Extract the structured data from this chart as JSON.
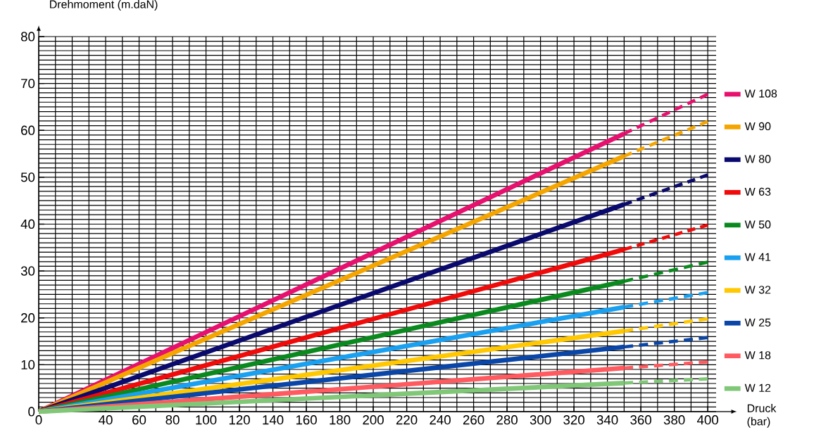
{
  "chart_data": {
    "type": "line",
    "xlabel": "Druck (bar)",
    "ylabel": "Drehmoment (m.daN)",
    "xlim": [
      0,
      405
    ],
    "ylim": [
      0,
      80
    ],
    "xticks": [
      0,
      {
        "value": 20,
        "label": null
      },
      40,
      60,
      80,
      100,
      120,
      140,
      160,
      180,
      200,
      220,
      240,
      260,
      280,
      300,
      320,
      340,
      360,
      380,
      400
    ],
    "yticks": [
      0,
      10,
      20,
      30,
      40,
      50,
      60,
      70,
      80
    ],
    "grid": true,
    "legend": "right",
    "series": [
      {
        "name": "W 108",
        "color": "#e8106e",
        "x": [
          0,
          350
        ],
        "values": [
          0,
          59.3
        ],
        "line_style": "solid"
      },
      {
        "color": "#e8106e",
        "x": [
          350,
          400
        ],
        "values": [
          59.3,
          67.7
        ],
        "line_style": "dashed"
      },
      {
        "name": "W 90",
        "color": "#f5a500",
        "x": [
          0,
          350
        ],
        "values": [
          0,
          54.5
        ],
        "line_style": "solid"
      },
      {
        "color": "#f5a500",
        "x": [
          350,
          400
        ],
        "values": [
          54.5,
          61.9
        ],
        "line_style": "dashed"
      },
      {
        "name": "W 80",
        "color": "#0a0a6e",
        "x": [
          0,
          350
        ],
        "values": [
          0,
          44.2
        ],
        "line_style": "solid"
      },
      {
        "color": "#0a0a6e",
        "x": [
          350,
          400
        ],
        "values": [
          44.2,
          50.5
        ],
        "line_style": "dashed"
      },
      {
        "name": "W 63",
        "color": "#f00a0a",
        "x": [
          0,
          350
        ],
        "values": [
          0,
          34.6
        ],
        "line_style": "solid"
      },
      {
        "color": "#f00a0a",
        "x": [
          350,
          400
        ],
        "values": [
          34.6,
          39.8
        ],
        "line_style": "dashed"
      },
      {
        "name": "W 50",
        "color": "#0a8a1e",
        "x": [
          0,
          350
        ],
        "values": [
          0,
          27.8
        ],
        "line_style": "solid"
      },
      {
        "color": "#0a8a1e",
        "x": [
          350,
          400
        ],
        "values": [
          27.8,
          31.9
        ],
        "line_style": "dashed"
      },
      {
        "name": "W 41",
        "color": "#1aa0f0",
        "x": [
          0,
          350
        ],
        "values": [
          0,
          22.3
        ],
        "line_style": "solid"
      },
      {
        "color": "#1aa0f0",
        "x": [
          350,
          400
        ],
        "values": [
          22.3,
          25.4
        ],
        "line_style": "dashed"
      },
      {
        "name": "W 32",
        "color": "#ffc800",
        "x": [
          0,
          350
        ],
        "values": [
          0,
          17.2
        ],
        "line_style": "solid"
      },
      {
        "color": "#ffc800",
        "x": [
          350,
          400
        ],
        "values": [
          17.2,
          19.8
        ],
        "line_style": "dashed"
      },
      {
        "name": "W 25",
        "color": "#0a46a8",
        "x": [
          0,
          350
        ],
        "values": [
          0,
          13.8
        ],
        "line_style": "solid"
      },
      {
        "color": "#0a46a8",
        "x": [
          350,
          400
        ],
        "values": [
          13.8,
          15.8
        ],
        "line_style": "dashed"
      },
      {
        "name": "W 18",
        "color": "#ff5a60",
        "x": [
          0,
          350
        ],
        "values": [
          0,
          9.3
        ],
        "line_style": "solid"
      },
      {
        "color": "#ff5a60",
        "x": [
          350,
          400
        ],
        "values": [
          9.3,
          10.6
        ],
        "line_style": "dashed"
      },
      {
        "name": "W 12",
        "color": "#80c878",
        "x": [
          0,
          350
        ],
        "values": [
          0,
          6.1
        ],
        "line_style": "solid"
      },
      {
        "color": "#80c878",
        "x": [
          350,
          400
        ],
        "values": [
          6.1,
          7.0
        ],
        "line_style": "dashed"
      }
    ]
  }
}
